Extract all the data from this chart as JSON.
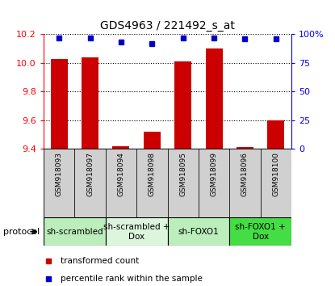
{
  "title": "GDS4963 / 221492_s_at",
  "samples": [
    "GSM918093",
    "GSM918097",
    "GSM918094",
    "GSM918098",
    "GSM918095",
    "GSM918099",
    "GSM918096",
    "GSM918100"
  ],
  "transformed_counts": [
    10.03,
    10.04,
    9.42,
    9.52,
    10.01,
    10.1,
    9.41,
    9.6
  ],
  "percentile_ranks": [
    97,
    97,
    93,
    92,
    97,
    97,
    96,
    96
  ],
  "ylim": [
    9.4,
    10.2
  ],
  "yticks_left": [
    9.4,
    9.6,
    9.8,
    10.0,
    10.2
  ],
  "yticks_right": [
    0,
    25,
    50,
    75,
    100
  ],
  "bar_color": "#cc0000",
  "dot_color": "#0000cc",
  "protocol_groups": [
    {
      "label": "sh-scrambled",
      "start": 0,
      "end": 2,
      "color": "#bbeebb"
    },
    {
      "label": "sh-scrambled +\nDox",
      "start": 2,
      "end": 4,
      "color": "#ddf5dd"
    },
    {
      "label": "sh-FOXO1",
      "start": 4,
      "end": 6,
      "color": "#bbeebb"
    },
    {
      "label": "sh-FOXO1 +\nDox",
      "start": 6,
      "end": 8,
      "color": "#44dd44"
    }
  ],
  "legend_items": [
    {
      "label": "transformed count",
      "color": "#cc0000"
    },
    {
      "label": "percentile rank within the sample",
      "color": "#0000cc"
    }
  ]
}
